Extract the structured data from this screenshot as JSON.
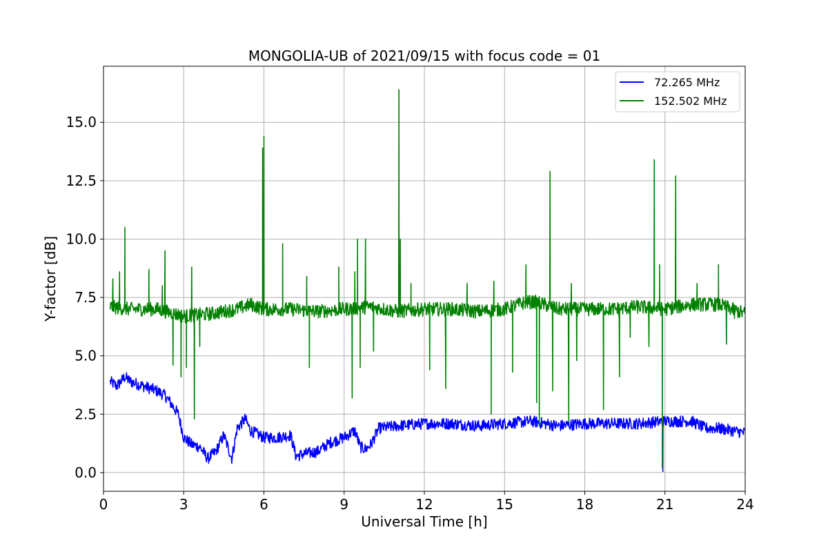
{
  "chart_data": {
    "type": "line",
    "title": "MONGOLIA-UB of 2021/09/15 with focus code = 01",
    "xlabel": "Universal Time [h]",
    "ylabel": "Y-factor [dB]",
    "xlim": [
      0,
      24
    ],
    "ylim": [
      -0.8,
      17.4
    ],
    "xticks": [
      0,
      3,
      6,
      9,
      12,
      15,
      18,
      21,
      24
    ],
    "xtick_labels": [
      "0",
      "3",
      "6",
      "9",
      "12",
      "15",
      "18",
      "21",
      "24"
    ],
    "yticks": [
      0,
      2.5,
      5,
      7.5,
      10,
      12.5,
      15
    ],
    "ytick_labels": [
      "0.0",
      "2.5",
      "5.0",
      "7.5",
      "10.0",
      "12.5",
      "15.0"
    ],
    "grid": true,
    "legend_position": "top-right",
    "series": [
      {
        "name": "72.265 MHz",
        "color": "#0000ff",
        "x": [
          0.25,
          0.5,
          0.8,
          1.0,
          1.5,
          2.0,
          2.3,
          2.5,
          2.8,
          3.0,
          3.3,
          3.6,
          3.9,
          4.2,
          4.5,
          4.8,
          5.0,
          5.3,
          5.5,
          6.0,
          6.5,
          7.0,
          7.2,
          7.5,
          8.0,
          8.5,
          9.0,
          9.4,
          9.6,
          9.8,
          10.0,
          10.3,
          11.0,
          12.0,
          13.0,
          14.0,
          15.0,
          16.0,
          17.0,
          18.0,
          19.0,
          20.0,
          21.0,
          22.0,
          22.5,
          23.0,
          24.0
        ],
        "values": [
          3.9,
          3.7,
          4.1,
          3.9,
          3.7,
          3.5,
          3.3,
          3.0,
          2.5,
          1.5,
          1.2,
          1.1,
          0.6,
          0.9,
          1.6,
          0.6,
          1.9,
          2.3,
          1.8,
          1.5,
          1.5,
          1.6,
          0.7,
          0.8,
          0.9,
          1.3,
          1.5,
          1.8,
          1.1,
          1.0,
          1.2,
          1.9,
          2.0,
          2.1,
          2.1,
          2.0,
          2.1,
          2.2,
          2.0,
          2.1,
          2.1,
          2.1,
          2.2,
          2.2,
          1.9,
          1.9,
          1.7
        ],
        "noise": 0.25,
        "spikes": [
          {
            "x": 20.92,
            "y": 0.05
          }
        ]
      },
      {
        "name": "152.502 MHz",
        "color": "#008000",
        "x": [
          0.25,
          1.0,
          2.0,
          3.0,
          4.0,
          5.0,
          5.5,
          6.0,
          7.0,
          8.0,
          9.0,
          10.0,
          11.0,
          12.0,
          13.0,
          14.0,
          15.0,
          15.8,
          16.2,
          17.0,
          18.0,
          19.0,
          20.0,
          21.0,
          22.0,
          23.0,
          24.0
        ],
        "values": [
          7.1,
          7.0,
          7.0,
          6.7,
          6.8,
          7.0,
          7.2,
          7.0,
          7.0,
          6.9,
          7.0,
          7.1,
          6.9,
          7.0,
          7.0,
          6.9,
          7.0,
          7.3,
          7.3,
          7.0,
          7.0,
          7.0,
          7.1,
          7.0,
          7.2,
          7.2,
          6.8
        ],
        "noise": 0.3,
        "spikes": [
          {
            "x": 0.35,
            "y": 8.3
          },
          {
            "x": 0.6,
            "y": 8.6
          },
          {
            "x": 0.8,
            "y": 10.5
          },
          {
            "x": 1.7,
            "y": 8.7
          },
          {
            "x": 2.2,
            "y": 8.0
          },
          {
            "x": 2.3,
            "y": 9.5
          },
          {
            "x": 2.6,
            "y": 4.6
          },
          {
            "x": 2.9,
            "y": 4.1
          },
          {
            "x": 3.1,
            "y": 4.5
          },
          {
            "x": 3.3,
            "y": 8.8
          },
          {
            "x": 3.4,
            "y": 2.3
          },
          {
            "x": 3.6,
            "y": 5.4
          },
          {
            "x": 5.95,
            "y": 13.9
          },
          {
            "x": 6.0,
            "y": 14.4
          },
          {
            "x": 6.7,
            "y": 9.8
          },
          {
            "x": 7.6,
            "y": 8.4
          },
          {
            "x": 7.7,
            "y": 4.5
          },
          {
            "x": 8.8,
            "y": 8.8
          },
          {
            "x": 9.3,
            "y": 3.2
          },
          {
            "x": 9.4,
            "y": 8.6
          },
          {
            "x": 9.5,
            "y": 10.0
          },
          {
            "x": 9.6,
            "y": 4.5
          },
          {
            "x": 9.8,
            "y": 10.0
          },
          {
            "x": 10.1,
            "y": 5.2
          },
          {
            "x": 11.05,
            "y": 16.4
          },
          {
            "x": 11.1,
            "y": 10.0
          },
          {
            "x": 11.5,
            "y": 8.1
          },
          {
            "x": 12.2,
            "y": 4.4
          },
          {
            "x": 12.8,
            "y": 3.6
          },
          {
            "x": 13.6,
            "y": 8.1
          },
          {
            "x": 14.5,
            "y": 2.5
          },
          {
            "x": 14.6,
            "y": 8.2
          },
          {
            "x": 15.3,
            "y": 4.3
          },
          {
            "x": 15.8,
            "y": 8.9
          },
          {
            "x": 16.2,
            "y": 3.0
          },
          {
            "x": 16.3,
            "y": 2.0
          },
          {
            "x": 16.7,
            "y": 12.9
          },
          {
            "x": 16.8,
            "y": 3.5
          },
          {
            "x": 17.4,
            "y": 2.2
          },
          {
            "x": 17.5,
            "y": 8.1
          },
          {
            "x": 17.7,
            "y": 4.8
          },
          {
            "x": 18.7,
            "y": 2.7
          },
          {
            "x": 19.3,
            "y": 4.1
          },
          {
            "x": 19.7,
            "y": 5.8
          },
          {
            "x": 20.4,
            "y": 5.4
          },
          {
            "x": 20.6,
            "y": 13.4
          },
          {
            "x": 20.8,
            "y": 8.9
          },
          {
            "x": 20.9,
            "y": 0.2
          },
          {
            "x": 21.4,
            "y": 12.7
          },
          {
            "x": 22.2,
            "y": 8.1
          },
          {
            "x": 23.0,
            "y": 8.9
          },
          {
            "x": 23.3,
            "y": 5.5
          },
          {
            "x": 23.6,
            "y": 6.6
          }
        ]
      }
    ]
  }
}
